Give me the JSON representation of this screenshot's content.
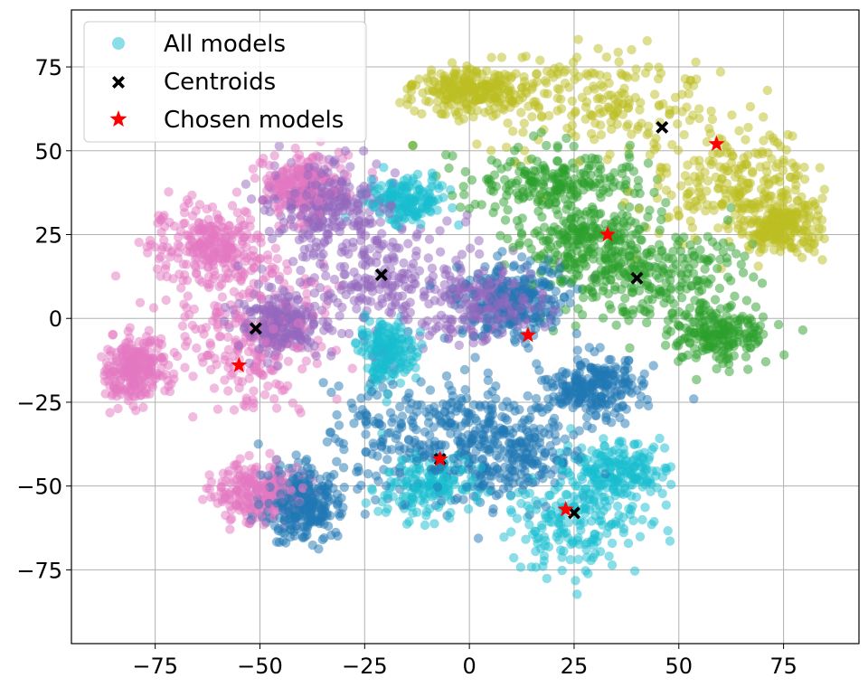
{
  "chart_data": {
    "type": "scatter",
    "title": "",
    "xlabel": "",
    "ylabel": "",
    "xlim": [
      -95,
      93
    ],
    "ylim": [
      -97,
      92
    ],
    "grid": true,
    "legend_placement": "top-left",
    "x_ticks": [
      -75,
      -50,
      -25,
      0,
      25,
      50,
      75
    ],
    "y_ticks": [
      -75,
      -50,
      -25,
      0,
      25,
      50,
      75
    ],
    "x_tick_labels": [
      "−75",
      "−50",
      "−25",
      "0",
      "25",
      "50",
      "75"
    ],
    "y_tick_labels": [
      "−75",
      "−50",
      "−25",
      "0",
      "25",
      "50",
      "75"
    ],
    "legend": [
      {
        "label": "All models",
        "marker": "circle",
        "color": "#17becf"
      },
      {
        "label": "Centroids",
        "marker": "x",
        "color": "#000000"
      },
      {
        "label": "Chosen models",
        "marker": "star",
        "color": "#ff0000"
      }
    ],
    "cluster_colors": [
      "#bcbd22",
      "#2ca02c",
      "#9467bd",
      "#e377c2",
      "#1f77b4",
      "#17becf"
    ],
    "cluster_regions": [
      {
        "color": "#bcbd22",
        "blobs": [
          [
            30,
            65,
            28,
            14
          ],
          [
            62,
            40,
            18,
            16
          ],
          [
            75,
            28,
            8,
            8
          ],
          [
            0,
            68,
            12,
            6
          ]
        ],
        "density": 900
      },
      {
        "color": "#2ca02c",
        "blobs": [
          [
            20,
            40,
            18,
            10
          ],
          [
            45,
            12,
            20,
            14
          ],
          [
            60,
            -5,
            10,
            8
          ],
          [
            28,
            22,
            14,
            10
          ]
        ],
        "density": 900
      },
      {
        "color": "#9467bd",
        "blobs": [
          [
            -22,
            12,
            20,
            18
          ],
          [
            -35,
            35,
            12,
            10
          ],
          [
            5,
            5,
            12,
            10
          ],
          [
            -45,
            -2,
            8,
            8
          ]
        ],
        "density": 950
      },
      {
        "color": "#e377c2",
        "blobs": [
          [
            -52,
            -5,
            16,
            22
          ],
          [
            -62,
            22,
            12,
            10
          ],
          [
            -80,
            -15,
            7,
            10
          ],
          [
            -50,
            -52,
            10,
            8
          ],
          [
            -40,
            40,
            8,
            8
          ]
        ],
        "density": 1200
      },
      {
        "color": "#1f77b4",
        "blobs": [
          [
            -10,
            -35,
            20,
            18
          ],
          [
            10,
            5,
            12,
            10
          ],
          [
            -40,
            -55,
            8,
            10
          ],
          [
            10,
            -40,
            14,
            14
          ],
          [
            30,
            -20,
            10,
            8
          ]
        ],
        "density": 1300
      },
      {
        "color": "#17becf",
        "blobs": [
          [
            25,
            -62,
            14,
            12
          ],
          [
            35,
            -45,
            12,
            8
          ],
          [
            -10,
            -50,
            10,
            8
          ],
          [
            -15,
            35,
            8,
            6
          ],
          [
            -20,
            -10,
            6,
            8
          ]
        ],
        "density": 900
      }
    ],
    "centroids": [
      {
        "x": 46,
        "y": 57
      },
      {
        "x": 40,
        "y": 12
      },
      {
        "x": -21,
        "y": 13
      },
      {
        "x": -51,
        "y": -3
      },
      {
        "x": -7,
        "y": -42
      },
      {
        "x": 25,
        "y": -58
      }
    ],
    "chosen_models": [
      {
        "x": 59,
        "y": 52
      },
      {
        "x": 33,
        "y": 25
      },
      {
        "x": 14,
        "y": -5
      },
      {
        "x": -55,
        "y": -14
      },
      {
        "x": -7,
        "y": -42
      },
      {
        "x": 23,
        "y": -57
      }
    ],
    "marker_alpha": 0.5
  }
}
